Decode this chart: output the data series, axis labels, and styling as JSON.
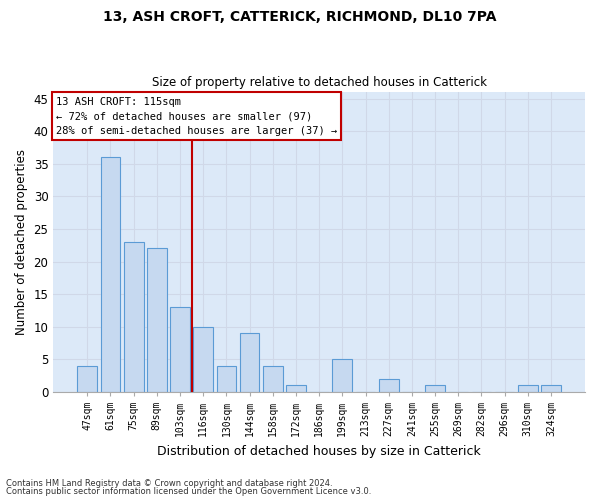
{
  "title1": "13, ASH CROFT, CATTERICK, RICHMOND, DL10 7PA",
  "title2": "Size of property relative to detached houses in Catterick",
  "xlabel": "Distribution of detached houses by size in Catterick",
  "ylabel": "Number of detached properties",
  "categories": [
    "47sqm",
    "61sqm",
    "75sqm",
    "89sqm",
    "103sqm",
    "116sqm",
    "130sqm",
    "144sqm",
    "158sqm",
    "172sqm",
    "186sqm",
    "199sqm",
    "213sqm",
    "227sqm",
    "241sqm",
    "255sqm",
    "269sqm",
    "282sqm",
    "296sqm",
    "310sqm",
    "324sqm"
  ],
  "values": [
    4,
    36,
    23,
    22,
    13,
    10,
    4,
    9,
    4,
    1,
    0,
    5,
    0,
    2,
    0,
    1,
    0,
    0,
    0,
    1,
    1
  ],
  "bar_color": "#c6d9f0",
  "bar_edge_color": "#5b9bd5",
  "grid_color": "#d0d8e8",
  "background_color": "#dce9f8",
  "ref_line_color": "#c00000",
  "ref_line_x": 5,
  "annotation_line1": "13 ASH CROFT: 115sqm",
  "annotation_line2": "← 72% of detached houses are smaller (97)",
  "annotation_line3": "28% of semi-detached houses are larger (37) →",
  "annotation_box_color": "#c00000",
  "ylim": [
    0,
    46
  ],
  "yticks": [
    0,
    5,
    10,
    15,
    20,
    25,
    30,
    35,
    40,
    45
  ],
  "footnote1": "Contains HM Land Registry data © Crown copyright and database right 2024.",
  "footnote2": "Contains public sector information licensed under the Open Government Licence v3.0."
}
